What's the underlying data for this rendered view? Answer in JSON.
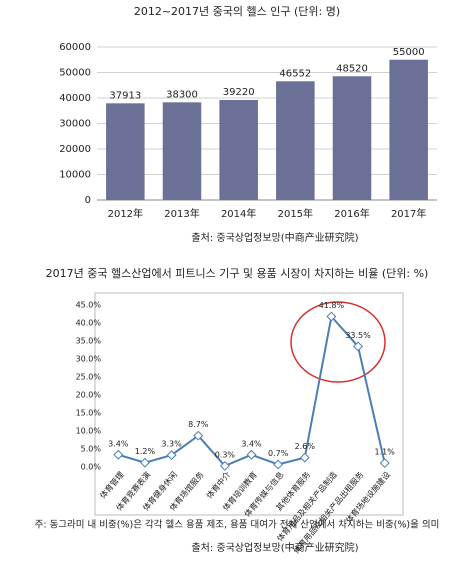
{
  "chart_data": [
    {
      "type": "bar",
      "title": "2012~2017년 중국의 헬스 인구 (단위: 명)",
      "categories": [
        "2012年",
        "2013年",
        "2014年",
        "2015年",
        "2016年",
        "2017年"
      ],
      "values": [
        37913,
        38300,
        39220,
        46552,
        48520,
        55000
      ],
      "color": "#6b7196",
      "ylim": [
        0,
        60000
      ],
      "yticks": [
        0,
        10000,
        20000,
        30000,
        40000,
        50000,
        60000
      ],
      "grid": true,
      "source": "출처: 중국상업정보망(中商产业研究院)"
    },
    {
      "type": "line",
      "title": "2017년 중국 헬스산업에서 피트니스 기구 및 용품 시장이 차지하는 비율 (단위: %)",
      "categories": [
        "体育管理",
        "体育竞赛表演",
        "体育健身休闲",
        "体育场馆服务",
        "体育中介",
        "体育培训教育",
        "体育传媒与信息",
        "其他体育服务",
        "体育用品及相关产品制造",
        "体育用品及相关产品出租服务",
        "体育场地设施建设"
      ],
      "values": [
        3.4,
        1.2,
        3.3,
        8.7,
        0.3,
        3.4,
        0.7,
        2.6,
        41.8,
        33.5,
        1.1
      ],
      "value_labels": [
        "3.4%",
        "1.2%",
        "3.3%",
        "8.7%",
        "0.3%",
        "3.4%",
        "0.7%",
        "2.6%",
        "41.8%",
        "33.5%",
        "1.1%"
      ],
      "color": "#4a7fb5",
      "ylim": [
        0,
        45
      ],
      "yticks": [
        {
          "value": 0,
          "label": "0.0%"
        },
        {
          "value": 5,
          "label": "5.0%"
        },
        {
          "value": 10,
          "label": "10.0%"
        },
        {
          "value": 15,
          "label": "15.0%"
        },
        {
          "value": 20,
          "label": "20.0%"
        },
        {
          "value": 25,
          "label": "25.0%"
        },
        {
          "value": 30,
          "label": "30.0%"
        },
        {
          "value": 35,
          "label": "35.0%"
        },
        {
          "value": 40,
          "label": "40.0%"
        },
        {
          "value": 45,
          "label": "45.0%"
        }
      ],
      "note": "주: 동그라미 내 비중(%)은 각각 헬스 용품 제조, 용품 대여가 전체 산업에서 차지하는 비중(%)을 의미",
      "source": "출처: 중국상업정보망(中商产业研究院)"
    }
  ]
}
